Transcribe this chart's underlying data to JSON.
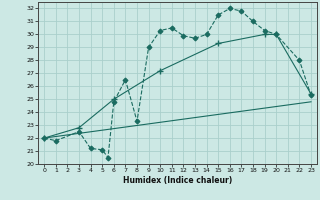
{
  "xlabel": "Humidex (Indice chaleur)",
  "bg_color": "#cce8e4",
  "grid_color": "#aacfcc",
  "line_color": "#1a6b60",
  "xlim": [
    -0.5,
    23.5
  ],
  "ylim": [
    20,
    32.5
  ],
  "yticks": [
    20,
    21,
    22,
    23,
    24,
    25,
    26,
    27,
    28,
    29,
    30,
    31,
    32
  ],
  "xticks": [
    0,
    1,
    2,
    3,
    4,
    5,
    6,
    7,
    8,
    9,
    10,
    11,
    12,
    13,
    14,
    15,
    16,
    17,
    18,
    19,
    20,
    21,
    22,
    23
  ],
  "series1_x": [
    0,
    1,
    3,
    4,
    5,
    5.5,
    6,
    7,
    8,
    9,
    10,
    11,
    12,
    13,
    14,
    15,
    16,
    17,
    18,
    19,
    20,
    22,
    23
  ],
  "series1_y": [
    22,
    21.8,
    22.5,
    21.2,
    21.1,
    20.5,
    24.8,
    26.5,
    23.3,
    29,
    30.3,
    30.5,
    29.9,
    29.7,
    30,
    31.5,
    32,
    31.8,
    31,
    30.3,
    30,
    28,
    25.3
  ],
  "series2_x": [
    0,
    3,
    6,
    10,
    15,
    19,
    20,
    23
  ],
  "series2_y": [
    22,
    22.8,
    25.0,
    27.2,
    29.3,
    30.0,
    30.0,
    25.4
  ],
  "series3_x": [
    0,
    23
  ],
  "series3_y": [
    22.0,
    24.8
  ]
}
